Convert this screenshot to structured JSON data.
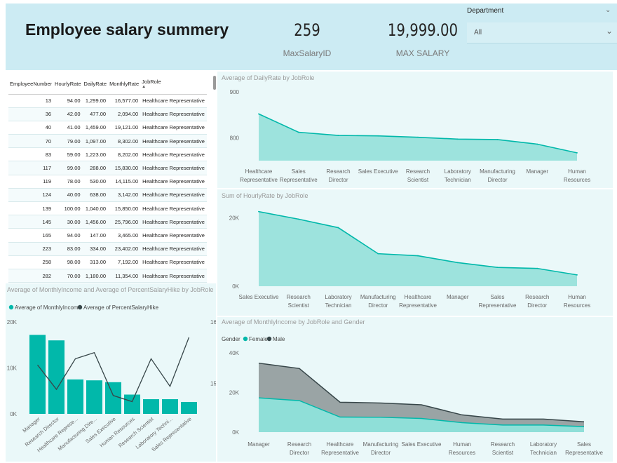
{
  "header": {
    "title": "Employee salary summery",
    "kpi_max_salary_id": {
      "value": "259",
      "label": "MaxSalaryID"
    },
    "kpi_max_salary": {
      "value": "19,999.00",
      "label": "MAX SALARY"
    }
  },
  "slicer": {
    "title": "Department",
    "value": "All"
  },
  "table": {
    "columns": [
      "EmployeeNumber",
      "HourlyRate",
      "DailyRate",
      "MonthlyRate",
      "JobRole"
    ],
    "sort_indicator": "▲",
    "rows": [
      [
        "13",
        "94.00",
        "1,299.00",
        "16,577.00",
        "Healthcare Representative"
      ],
      [
        "36",
        "42.00",
        "477.00",
        "2,094.00",
        "Healthcare Representative"
      ],
      [
        "40",
        "41.00",
        "1,459.00",
        "19,121.00",
        "Healthcare Representative"
      ],
      [
        "70",
        "79.00",
        "1,097.00",
        "8,302.00",
        "Healthcare Representative"
      ],
      [
        "83",
        "59.00",
        "1,223.00",
        "8,202.00",
        "Healthcare Representative"
      ],
      [
        "117",
        "99.00",
        "288.00",
        "15,830.00",
        "Healthcare Representative"
      ],
      [
        "119",
        "78.00",
        "530.00",
        "14,115.00",
        "Healthcare Representative"
      ],
      [
        "124",
        "40.00",
        "638.00",
        "3,142.00",
        "Healthcare Representative"
      ],
      [
        "139",
        "100.00",
        "1,040.00",
        "15,850.00",
        "Healthcare Representative"
      ],
      [
        "145",
        "30.00",
        "1,456.00",
        "25,796.00",
        "Healthcare Representative"
      ],
      [
        "165",
        "94.00",
        "147.00",
        "3,465.00",
        "Healthcare Representative"
      ],
      [
        "223",
        "83.00",
        "334.00",
        "23,402.00",
        "Healthcare Representative"
      ],
      [
        "258",
        "98.00",
        "313.00",
        "7,192.00",
        "Healthcare Representative"
      ],
      [
        "282",
        "70.00",
        "1,180.00",
        "11,354.00",
        "Healthcare Representative"
      ]
    ]
  },
  "colors": {
    "teal": "#01b8aa",
    "teal_area": "#8fdfd8",
    "dark": "#374649",
    "gray_area": "#9aa4a5"
  },
  "chart_data": [
    {
      "id": "daily_rate",
      "type": "area",
      "title": "Average of DailyRate by JobRole",
      "categories": [
        "Healthcare Representative",
        "Sales Representative",
        "Research Director",
        "Sales Executive",
        "Research Scientist",
        "Laboratory Technician",
        "Manufacturing Director",
        "Manager",
        "Human Resources"
      ],
      "category_labels": [
        [
          "Healthcare",
          "Representative"
        ],
        [
          "Sales",
          "Representative"
        ],
        [
          "Research",
          "Director"
        ],
        [
          "Sales Executive"
        ],
        [
          "Research",
          "Scientist"
        ],
        [
          "Laboratory",
          "Technician"
        ],
        [
          "Manufacturing",
          "Director"
        ],
        [
          "Manager"
        ],
        [
          "Human",
          "Resources"
        ]
      ],
      "series": [
        {
          "values": [
            852,
            812,
            805,
            804,
            801,
            797,
            796,
            786,
            767
          ]
        }
      ],
      "ylim": [
        750,
        900
      ],
      "yticks": [
        {
          "value": 800,
          "label": "800"
        },
        {
          "value": 900,
          "label": "900"
        }
      ],
      "grid": false
    },
    {
      "id": "hourly_rate",
      "type": "area",
      "title": "Sum of HourlyRate by JobRole",
      "categories": [
        "Sales Executive",
        "Research Scientist",
        "Laboratory Technician",
        "Manufacturing Director",
        "Healthcare Representative",
        "Manager",
        "Sales Representative",
        "Research Director",
        "Human Resources"
      ],
      "category_labels": [
        [
          "Sales Executive"
        ],
        [
          "Research",
          "Scientist"
        ],
        [
          "Laboratory",
          "Technician"
        ],
        [
          "Manufacturing",
          "Director"
        ],
        [
          "Healthcare",
          "Representative"
        ],
        [
          "Manager"
        ],
        [
          "Sales",
          "Representative"
        ],
        [
          "Research",
          "Director"
        ],
        [
          "Human",
          "Resources"
        ]
      ],
      "series": [
        {
          "values": [
            21800,
            19600,
            17100,
            9500,
            8900,
            6900,
            5500,
            5200,
            3300
          ]
        }
      ],
      "ylim": [
        0,
        25000
      ],
      "yticks": [
        {
          "value": 0,
          "label": "0K"
        },
        {
          "value": 20000,
          "label": "20K"
        }
      ],
      "grid": false
    },
    {
      "id": "monthly_income_hike",
      "type": "bar",
      "title": "Average of MonthlyIncome and Average of PercentSalaryHike by JobRole",
      "categories": [
        "Manager",
        "Research Director",
        "Healthcare Represe...",
        "Manufacturing Dire...",
        "Sales Executive",
        "Human Resources",
        "Research Scientist",
        "Laboratory Techni...",
        "Sales Representative"
      ],
      "series": [
        {
          "name": "Average of MonthlyIncome",
          "type": "bar",
          "axis": "left",
          "values": [
            17200,
            16000,
            7500,
            7300,
            6900,
            4200,
            3200,
            3200,
            2600
          ]
        },
        {
          "name": "Average of PercentSalaryHike",
          "type": "line",
          "axis": "right",
          "values": [
            15.3,
            14.9,
            15.4,
            15.5,
            14.8,
            14.7,
            15.4,
            14.95,
            15.75
          ]
        }
      ],
      "ylim": [
        0,
        20000
      ],
      "yticks": [
        {
          "value": 0,
          "label": "0K"
        },
        {
          "value": 10000,
          "label": "10K"
        },
        {
          "value": 20000,
          "label": "20K"
        }
      ],
      "y2lim": [
        14.5,
        16
      ],
      "y2ticks": [
        {
          "value": 15,
          "label": "15"
        },
        {
          "value": 16,
          "label": "16"
        }
      ],
      "legend": "top-left",
      "grid": false
    },
    {
      "id": "monthly_income_gender",
      "type": "area",
      "title": "Average of MonthlyIncome by JobRole and Gender",
      "legend_title": "Gender",
      "categories": [
        "Manager",
        "Research Director",
        "Healthcare Representative",
        "Manufacturing Director",
        "Sales Executive",
        "Human Resources",
        "Research Scientist",
        "Laboratory Technician",
        "Sales Representative"
      ],
      "category_labels": [
        [
          "Manager"
        ],
        [
          "Research",
          "Director"
        ],
        [
          "Healthcare",
          "Representative"
        ],
        [
          "Manufacturing",
          "Director"
        ],
        [
          "Sales Executive"
        ],
        [
          "Human",
          "Resources"
        ],
        [
          "Research",
          "Scientist"
        ],
        [
          "Laboratory",
          "Technician"
        ],
        [
          "Sales",
          "Representative"
        ]
      ],
      "stacked": true,
      "series": [
        {
          "name": "Female",
          "values": [
            17300,
            15900,
            7600,
            7500,
            6900,
            4800,
            3600,
            3600,
            2800
          ]
        },
        {
          "name": "Male",
          "values": [
            17500,
            16200,
            7500,
            7200,
            6900,
            3900,
            3000,
            3000,
            2400
          ]
        }
      ],
      "ylim": [
        0,
        40000
      ],
      "yticks": [
        {
          "value": 0,
          "label": "0K"
        },
        {
          "value": 20000,
          "label": "20K"
        },
        {
          "value": 40000,
          "label": "40K"
        }
      ],
      "legend": "top-left",
      "grid": false
    }
  ]
}
